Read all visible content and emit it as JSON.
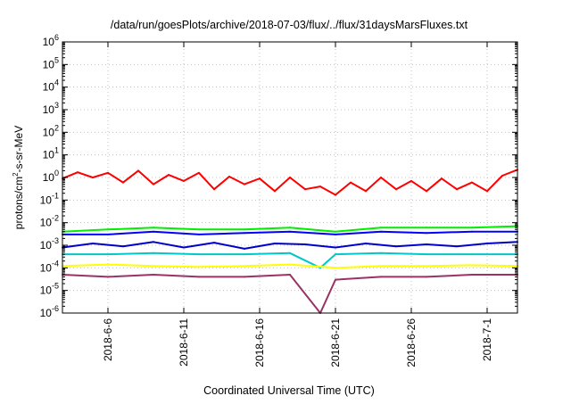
{
  "chart_data": {
    "type": "line",
    "title": "/data/run/goesPlots/archive/2018-07-03/flux/../flux/31daysMarsFluxes.txt",
    "xlabel": "Coordinated Universal Time (UTC)",
    "ylabel": {
      "base": "protons/cm",
      "sup": "2",
      "rest": "-s-sr-MeV"
    },
    "y_scale": "log",
    "ylim": [
      1e-06,
      1000000.0
    ],
    "xlim": [
      "2018-06-03",
      "2018-07-03"
    ],
    "grid": true,
    "legend": "none",
    "y_ticks": [
      {
        "exp": -6,
        "base": "10",
        "sup": "-6"
      },
      {
        "exp": -5,
        "base": "10",
        "sup": "-5"
      },
      {
        "exp": -4,
        "base": "10",
        "sup": "-4"
      },
      {
        "exp": -3,
        "base": "10",
        "sup": "-3"
      },
      {
        "exp": -2,
        "base": "10",
        "sup": "-2"
      },
      {
        "exp": -1,
        "base": "10",
        "sup": "-1"
      },
      {
        "exp": 0,
        "base": "10",
        "sup": "0"
      },
      {
        "exp": 1,
        "base": "10",
        "sup": "1"
      },
      {
        "exp": 2,
        "base": "10",
        "sup": "2"
      },
      {
        "exp": 3,
        "base": "10",
        "sup": "3"
      },
      {
        "exp": 4,
        "base": "10",
        "sup": "4"
      },
      {
        "exp": 5,
        "base": "10",
        "sup": "5"
      },
      {
        "exp": 6,
        "base": "10",
        "sup": "6"
      }
    ],
    "x_ticks": [
      {
        "date": "2018-06-06",
        "label": "2018-6-6"
      },
      {
        "date": "2018-06-11",
        "label": "2018-6-11"
      },
      {
        "date": "2018-06-16",
        "label": "2018-6-16"
      },
      {
        "date": "2018-06-21",
        "label": "2018-6-21"
      },
      {
        "date": "2018-06-26",
        "label": "2018-6-26"
      },
      {
        "date": "2018-07-01",
        "label": "2018-7-1"
      }
    ],
    "series": [
      {
        "color": "#ff0000",
        "x": [
          "2018-06-03",
          "2018-06-04",
          "2018-06-05",
          "2018-06-06",
          "2018-06-07",
          "2018-06-08",
          "2018-06-09",
          "2018-06-10",
          "2018-06-11",
          "2018-06-12",
          "2018-06-13",
          "2018-06-14",
          "2018-06-15",
          "2018-06-16",
          "2018-06-17",
          "2018-06-18",
          "2018-06-19",
          "2018-06-20",
          "2018-06-21",
          "2018-06-22",
          "2018-06-23",
          "2018-06-24",
          "2018-06-25",
          "2018-06-26",
          "2018-06-27",
          "2018-06-28",
          "2018-06-29",
          "2018-06-30",
          "2018-07-01",
          "2018-07-02",
          "2018-07-03"
        ],
        "y": [
          0.9,
          1.7,
          1.0,
          1.6,
          0.6,
          2.0,
          0.5,
          1.3,
          0.7,
          1.6,
          0.3,
          1.1,
          0.5,
          0.9,
          0.25,
          1.0,
          0.3,
          0.4,
          0.17,
          0.6,
          0.25,
          1.0,
          0.3,
          0.7,
          0.25,
          0.9,
          0.3,
          0.6,
          0.25,
          1.2,
          2.2
        ]
      },
      {
        "color": "#00ee00",
        "x": [
          "2018-06-03",
          "2018-06-06",
          "2018-06-09",
          "2018-06-12",
          "2018-06-15",
          "2018-06-18",
          "2018-06-21",
          "2018-06-24",
          "2018-06-27",
          "2018-06-30",
          "2018-07-03"
        ],
        "y": [
          0.004,
          0.005,
          0.006,
          0.005,
          0.005,
          0.006,
          0.004,
          0.006,
          0.006,
          0.006,
          0.007
        ]
      },
      {
        "color": "#0000ff",
        "x": [
          "2018-06-03",
          "2018-06-06",
          "2018-06-09",
          "2018-06-12",
          "2018-06-15",
          "2018-06-18",
          "2018-06-21",
          "2018-06-24",
          "2018-06-27",
          "2018-06-30",
          "2018-07-03"
        ],
        "y": [
          0.003,
          0.003,
          0.004,
          0.003,
          0.0035,
          0.004,
          0.003,
          0.004,
          0.0035,
          0.004,
          0.004
        ]
      },
      {
        "color": "#0000cc",
        "x": [
          "2018-06-03",
          "2018-06-05",
          "2018-06-07",
          "2018-06-09",
          "2018-06-11",
          "2018-06-13",
          "2018-06-15",
          "2018-06-17",
          "2018-06-19",
          "2018-06-21",
          "2018-06-23",
          "2018-06-25",
          "2018-06-27",
          "2018-06-29",
          "2018-07-01",
          "2018-07-03"
        ],
        "y": [
          0.0008,
          0.0012,
          0.0009,
          0.0014,
          0.0008,
          0.0013,
          0.0007,
          0.0012,
          0.0011,
          0.0008,
          0.0012,
          0.0009,
          0.0011,
          0.0009,
          0.0012,
          0.0014
        ]
      },
      {
        "color": "#00c8c8",
        "x": [
          "2018-06-03",
          "2018-06-06",
          "2018-06-09",
          "2018-06-12",
          "2018-06-15",
          "2018-06-18",
          "2018-06-20",
          "2018-06-21",
          "2018-06-24",
          "2018-06-27",
          "2018-06-30",
          "2018-07-03"
        ],
        "y": [
          0.0004,
          0.0004,
          0.00045,
          0.0004,
          0.0004,
          0.00045,
          0.0001,
          0.0004,
          0.00045,
          0.0004,
          0.0004,
          0.0004
        ]
      },
      {
        "color": "#ffff00",
        "x": [
          "2018-06-03",
          "2018-06-06",
          "2018-06-09",
          "2018-06-12",
          "2018-06-15",
          "2018-06-18",
          "2018-06-21",
          "2018-06-24",
          "2018-06-27",
          "2018-06-30",
          "2018-07-03"
        ],
        "y": [
          0.00012,
          0.00014,
          0.00012,
          0.00011,
          0.00012,
          0.00014,
          0.0001,
          0.00012,
          0.00012,
          0.00013,
          0.00012
        ]
      },
      {
        "color": "#993366",
        "x": [
          "2018-06-03",
          "2018-06-06",
          "2018-06-09",
          "2018-06-12",
          "2018-06-15",
          "2018-06-18",
          "2018-06-20",
          "2018-06-21",
          "2018-06-24",
          "2018-06-27",
          "2018-06-30",
          "2018-07-03"
        ],
        "y": [
          5e-05,
          4e-05,
          5e-05,
          4e-05,
          4e-05,
          5e-05,
          1e-06,
          3e-05,
          4e-05,
          4e-05,
          5e-05,
          5e-05
        ]
      }
    ]
  }
}
